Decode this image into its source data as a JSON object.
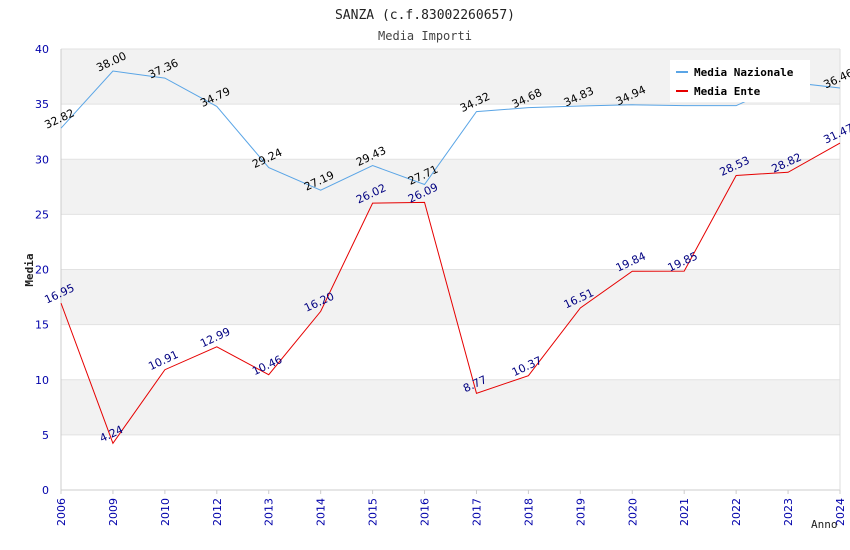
{
  "chart_data": {
    "type": "line",
    "title": "SANZA (c.f.83002260657)",
    "subtitle": "Media Importi",
    "xlabel": "Anno",
    "ylabel": "Media",
    "ylim": [
      0,
      40
    ],
    "yticks": [
      0,
      5,
      10,
      15,
      20,
      25,
      30,
      35,
      40
    ],
    "grid": true,
    "legend_position": "top-right",
    "categories": [
      "2006",
      "2009",
      "2010",
      "2012",
      "2013",
      "2014",
      "2015",
      "2016",
      "2017",
      "2018",
      "2019",
      "2020",
      "2021",
      "2022",
      "2023",
      "2024"
    ],
    "series": [
      {
        "name": "Media Nazionale",
        "color": "#5aa5e6",
        "label_color": "#000000",
        "values": [
          32.82,
          38.0,
          37.36,
          34.79,
          29.24,
          27.19,
          29.43,
          27.71,
          34.32,
          34.68,
          34.83,
          34.94,
          34.86,
          34.86,
          37.0,
          36.46
        ],
        "labels": [
          "32.82",
          "38.00",
          "37.36",
          "34.79",
          "29.24",
          "27.19",
          "29.43",
          "27.71",
          "34.32",
          "34.68",
          "34.83",
          "34.94",
          "",
          "",
          "",
          "36.46"
        ]
      },
      {
        "name": "Media Ente",
        "color": "#e60000",
        "label_color": "#000080",
        "values": [
          16.95,
          4.24,
          10.91,
          12.99,
          10.46,
          16.2,
          26.02,
          26.09,
          8.77,
          10.37,
          16.51,
          19.84,
          19.85,
          28.53,
          28.82,
          31.47
        ],
        "labels": [
          "16.95",
          "4.24",
          "10.91",
          "12.99",
          "10.46",
          "16.20",
          "26.02",
          "26.09",
          "8.77",
          "10.37",
          "16.51",
          "19.84",
          "19.85",
          "28.53",
          "28.82",
          "31.47"
        ]
      }
    ]
  }
}
